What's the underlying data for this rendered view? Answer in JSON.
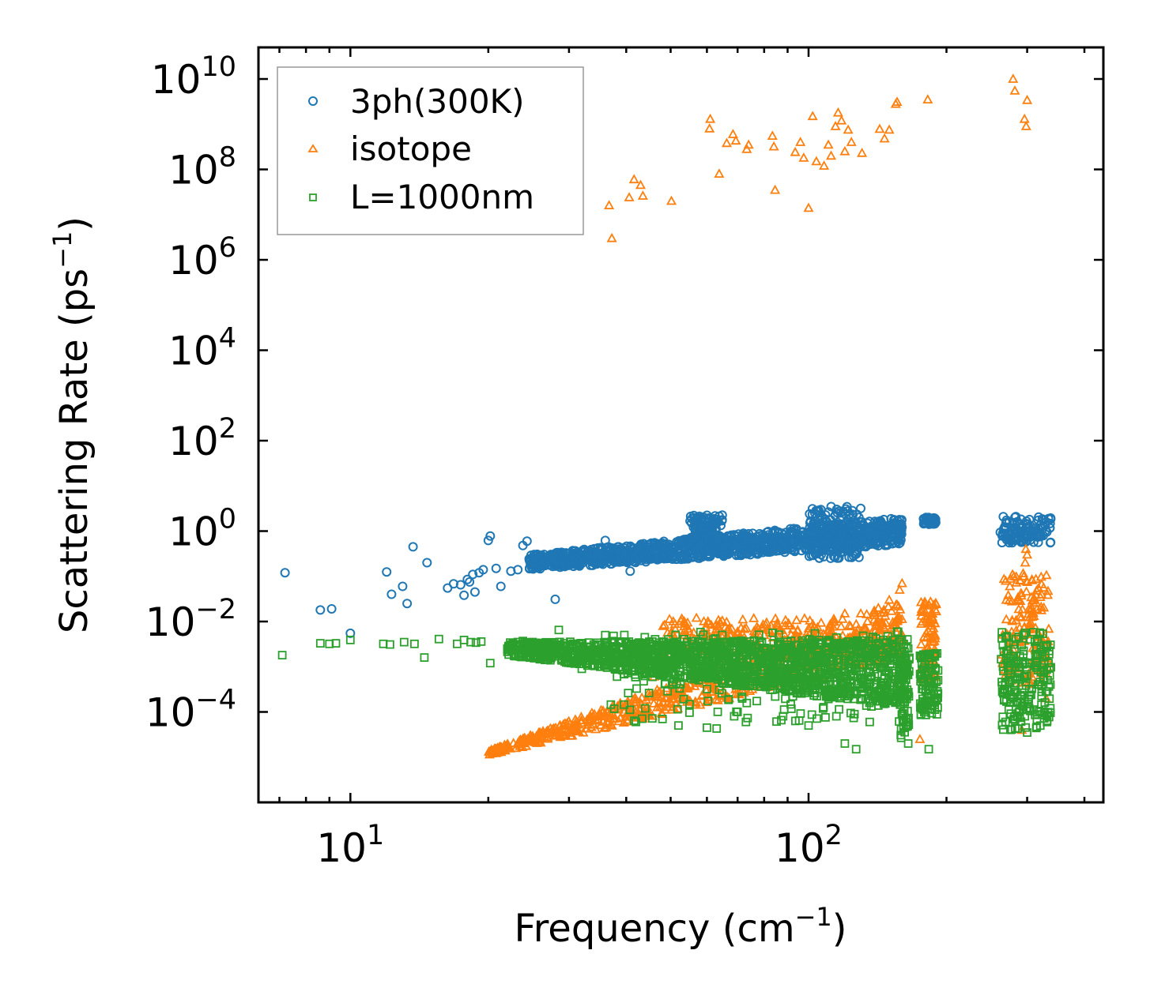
{
  "chart_data": {
    "type": "scatter",
    "xscale": "log",
    "yscale": "log",
    "xlim": [
      6.3,
      440
    ],
    "ylim": [
      1e-06,
      50000000000
    ],
    "xlabel": {
      "main": "Frequency (cm",
      "sup": "−1",
      "end": ")"
    },
    "ylabel": {
      "main": "Scattering Rate (ps",
      "sup": "−1",
      "end": ")"
    },
    "xticks": [
      {
        "value": 10,
        "base": "10",
        "exp": "1"
      },
      {
        "value": 100,
        "base": "10",
        "exp": "2"
      }
    ],
    "yticks": [
      {
        "value": 0.0001,
        "base": "10",
        "exp": "−4"
      },
      {
        "value": 0.01,
        "base": "10",
        "exp": "−2"
      },
      {
        "value": 1,
        "base": "10",
        "exp": "0"
      },
      {
        "value": 100,
        "base": "10",
        "exp": "2"
      },
      {
        "value": 10000,
        "base": "10",
        "exp": "4"
      },
      {
        "value": 1000000,
        "base": "10",
        "exp": "6"
      },
      {
        "value": 100000000,
        "base": "10",
        "exp": "8"
      },
      {
        "value": 10000000000,
        "base": "10",
        "exp": "10"
      }
    ],
    "legend_position": "top-left",
    "series": [
      {
        "name": "3ph(300K)",
        "marker": "circle",
        "color": "#1f77b4",
        "points": [
          [
            7.2,
            0.12
          ],
          [
            8.6,
            0.018
          ],
          [
            9.1,
            0.019
          ],
          [
            10.0,
            0.0055
          ],
          [
            12.0,
            0.125
          ],
          [
            12.3,
            0.04
          ],
          [
            13.0,
            0.06
          ],
          [
            13.3,
            0.025
          ],
          [
            13.7,
            0.45
          ],
          [
            14.7,
            0.2
          ],
          [
            16.3,
            0.055
          ],
          [
            16.8,
            0.068
          ],
          [
            17.4,
            0.065
          ],
          [
            17.7,
            0.038
          ],
          [
            18.0,
            0.085
          ],
          [
            18.2,
            0.075
          ],
          [
            18.5,
            0.11
          ],
          [
            18.7,
            0.045
          ],
          [
            19.1,
            0.12
          ],
          [
            19.5,
            0.14
          ],
          [
            20.0,
            0.62
          ],
          [
            20.2,
            0.78
          ],
          [
            20.8,
            0.15
          ],
          [
            21.3,
            0.06
          ],
          [
            22.4,
            0.13
          ],
          [
            23.2,
            0.14
          ],
          [
            23.8,
            0.48
          ],
          [
            24.3,
            0.6
          ],
          [
            25.3,
            0.25
          ],
          [
            26.0,
            0.18
          ],
          [
            27.3,
            0.21
          ],
          [
            28.0,
            0.031
          ],
          [
            29.4,
            0.27
          ],
          [
            32.2,
            0.38
          ],
          [
            36.0,
            0.62
          ],
          [
            40.8,
            0.13
          ],
          [
            45.2,
            0.52
          ],
          [
            52.3,
            0.48
          ]
        ],
        "band": {
          "x_start": 24.5,
          "x_end": 160,
          "y_lo_start": 0.14,
          "y_hi_start": 0.3,
          "y_lo_end": 0.5,
          "y_hi_end": 2.0,
          "count": 1250
        },
        "clusters": [
          {
            "x_range": [
              55,
              65
            ],
            "y_range": [
              0.35,
              2.3
            ],
            "count": 140
          },
          {
            "x_range": [
              100,
              130
            ],
            "y_range": [
              0.25,
              3.5
            ],
            "count": 170
          },
          {
            "x_range": [
              178,
              190
            ],
            "y_range": [
              1.4,
              2.1
            ],
            "count": 45
          },
          {
            "x_range": [
              262,
              338
            ],
            "y_range": [
              0.55,
              2.1
            ],
            "count": 110
          }
        ]
      },
      {
        "name": "isotope",
        "marker": "triangle",
        "color": "#ff7f0e",
        "points": [
          [
            36.7,
            16000000
          ],
          [
            37.2,
            3000000
          ],
          [
            40.6,
            24000000
          ],
          [
            41.6,
            60000000
          ],
          [
            43.0,
            45000000
          ],
          [
            43.5,
            26000000
          ],
          [
            50.2,
            20000000
          ],
          [
            60.8,
            800000000
          ],
          [
            61.0,
            1300000000
          ],
          [
            63.8,
            80000000
          ],
          [
            66.3,
            380000000
          ],
          [
            68.4,
            600000000
          ],
          [
            69.4,
            430000000
          ],
          [
            73.3,
            280000000
          ],
          [
            74.0,
            350000000
          ],
          [
            83.4,
            550000000
          ],
          [
            84.0,
            320000000
          ],
          [
            84.5,
            35000000
          ],
          [
            93.5,
            240000000
          ],
          [
            96.0,
            400000000
          ],
          [
            97.6,
            180000000
          ],
          [
            100.0,
            14000000
          ],
          [
            102.1,
            1500000000
          ],
          [
            104.0,
            150000000
          ],
          [
            108.1,
            120000000
          ],
          [
            110.5,
            350000000
          ],
          [
            112.0,
            200000000
          ],
          [
            114.5,
            900000000
          ],
          [
            116.0,
            1800000000
          ],
          [
            118.0,
            1200000000
          ],
          [
            120.0,
            250000000
          ],
          [
            122.0,
            750000000
          ],
          [
            124.0,
            400000000
          ],
          [
            130.8,
            230000000
          ],
          [
            143.0,
            780000000
          ],
          [
            146.5,
            480000000
          ],
          [
            150.0,
            750000000
          ],
          [
            155.0,
            2800000000
          ],
          [
            156.0,
            3100000000
          ],
          [
            182.0,
            3500000000
          ],
          [
            279.5,
            10000000000
          ],
          [
            282.0,
            5500000000
          ],
          [
            296.0,
            1300000000
          ],
          [
            298.5,
            900000000
          ],
          [
            300.0,
            3400000000
          ],
          [
            46.0,
            0.0006
          ],
          [
            60.0,
            0.004
          ],
          [
            64.0,
            0.007
          ],
          [
            70.0,
            0.006
          ],
          [
            80.0,
            0.005
          ],
          [
            100.0,
            0.007
          ],
          [
            120.0,
            0.015
          ],
          [
            130.0,
            0.015
          ],
          [
            142.0,
            0.02
          ],
          [
            150.0,
            0.03
          ],
          [
            158.0,
            0.05
          ],
          [
            160.0,
            0.07
          ],
          [
            175.0,
            2.5e-05
          ],
          [
            180.0,
            0.025
          ],
          [
            185.0,
            0.015
          ],
          [
            270.0,
            0.03
          ],
          [
            275.0,
            0.06
          ],
          [
            290.0,
            0.08
          ],
          [
            295.0,
            0.1
          ],
          [
            297.0,
            0.2
          ],
          [
            298.0,
            0.4
          ],
          [
            300.0,
            0.3
          ],
          [
            310.0,
            0.03
          ],
          [
            330.0,
            0.0002
          ],
          [
            292.0,
            4e-05
          ]
        ],
        "band": {
          "x_start": 20,
          "x_end": 160,
          "y_lo_start": 1.1e-05,
          "y_hi_start": 1.4e-05,
          "y_lo_end": 0.0015,
          "y_hi_end": 0.03,
          "count": 650
        },
        "clusters": [
          {
            "x_range": [
              48,
              160
            ],
            "y_range": [
              0.0015,
              0.012
            ],
            "count": 280
          },
          {
            "x_range": [
              176,
              190
            ],
            "y_range": [
              0.0004,
              0.03
            ],
            "count": 90
          },
          {
            "x_range": [
              265,
              335
            ],
            "y_range": [
              0.0004,
              0.12
            ],
            "count": 150
          }
        ]
      },
      {
        "name": "L=1000nm",
        "marker": "square",
        "color": "#2ca02c",
        "points": [
          [
            7.1,
            0.0018
          ],
          [
            8.6,
            0.0033
          ],
          [
            9.0,
            0.0032
          ],
          [
            9.3,
            0.0033
          ],
          [
            10.0,
            0.0039
          ],
          [
            11.8,
            0.0032
          ],
          [
            12.2,
            0.0031
          ],
          [
            13.1,
            0.0035
          ],
          [
            13.8,
            0.0032
          ],
          [
            14.5,
            0.0016
          ],
          [
            15.6,
            0.0041
          ],
          [
            17.1,
            0.0032
          ],
          [
            17.7,
            0.0039
          ],
          [
            18.3,
            0.0035
          ],
          [
            18.8,
            0.0034
          ],
          [
            19.3,
            0.0036
          ],
          [
            20.2,
            0.0012
          ],
          [
            22.2,
            0.0029
          ],
          [
            23.8,
            0.0037
          ],
          [
            25.0,
            0.0021
          ],
          [
            27.5,
            0.0025
          ],
          [
            28.5,
            0.0065
          ],
          [
            32.0,
            0.0009
          ],
          [
            36.0,
            0.005
          ],
          [
            42.0,
            6e-05
          ],
          [
            44.0,
            0.00012
          ],
          [
            48.0,
            7e-05
          ],
          [
            52.0,
            5e-05
          ],
          [
            60.0,
            4.5e-05
          ],
          [
            63.0,
            4.3e-05
          ],
          [
            70.0,
            0.0001
          ],
          [
            73.0,
            6e-05
          ],
          [
            88.0,
            8e-05
          ],
          [
            100.0,
            5e-05
          ],
          [
            115.0,
            8e-05
          ],
          [
            120.0,
            2e-05
          ],
          [
            127.0,
            1.5e-05
          ],
          [
            136.0,
            6e-05
          ],
          [
            165.0,
            2e-05
          ],
          [
            183.0,
            1.5e-05
          ],
          [
            300.0,
            3.5e-05
          ]
        ],
        "band": {
          "x_start": 22,
          "x_end": 165,
          "y_lo_start": 0.0018,
          "y_hi_start": 0.0035,
          "y_lo_end": 0.00012,
          "y_hi_end": 0.004,
          "count": 1600
        },
        "clusters": [
          {
            "x_range": [
              36,
              165
            ],
            "y_range": [
              6e-05,
              0.006
            ],
            "count": 220
          },
          {
            "x_range": [
              158,
              166
            ],
            "y_range": [
              2.5e-05,
              0.002
            ],
            "count": 60
          },
          {
            "x_range": [
              175,
              192
            ],
            "y_range": [
              8e-05,
              0.002
            ],
            "count": 100
          },
          {
            "x_range": [
              262,
              338
            ],
            "y_range": [
              4e-05,
              0.006
            ],
            "count": 200
          }
        ]
      }
    ]
  }
}
